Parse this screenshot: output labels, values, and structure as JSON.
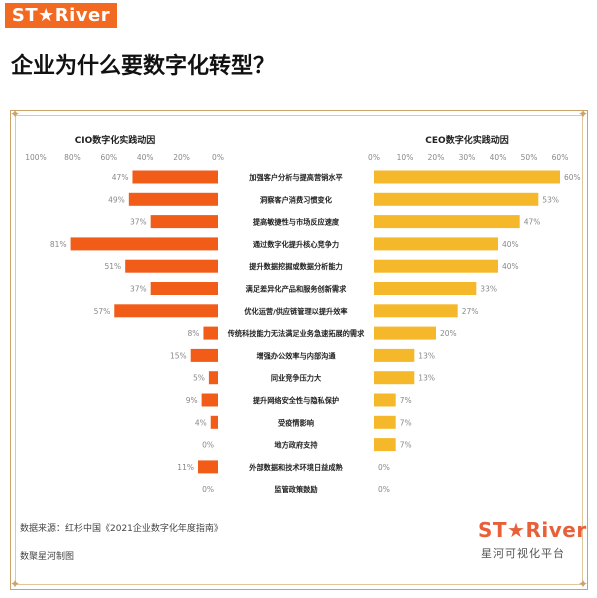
{
  "header": {
    "logo_text": "ST★River",
    "title": "企业为什么要数字化转型？"
  },
  "colors": {
    "cio": "#f25c19",
    "ceo": "#f5b82a",
    "frame": "#c9a36a",
    "logo_bg": "#f26a21"
  },
  "chart_data": {
    "type": "bar",
    "orientation": "horizontal-butterfly",
    "categories": [
      "加强客户分析与提高营销水平",
      "洞察客户消费习惯变化",
      "提高敏捷性与市场反应速度",
      "通过数字化提升核心竞争力",
      "提升数据挖掘或数据分析能力",
      "满足差异化产品和服务创新需求",
      "优化运营/供应链管理以提升效率",
      "传统科技能力无法满足业务急速拓展的需求",
      "增强办公效率与内部沟通",
      "同业竞争压力大",
      "提升网络安全性与隐私保护",
      "受疫情影响",
      "地方政府支持",
      "外部数据和技术环境日益成熟",
      "监管政策鼓励"
    ],
    "series": [
      {
        "name": "CIO数字化实践动因",
        "values": [
          47,
          49,
          37,
          81,
          51,
          37,
          57,
          8,
          15,
          5,
          9,
          4,
          0,
          11,
          0
        ]
      },
      {
        "name": "CEO数字化实践动因",
        "values": [
          60,
          53,
          47,
          40,
          40,
          33,
          27,
          20,
          13,
          13,
          7,
          7,
          7,
          0,
          0
        ]
      }
    ],
    "left_ticks": [
      "100%",
      "80%",
      "60%",
      "40%",
      "20%",
      "0%"
    ],
    "right_ticks": [
      "0%",
      "10%",
      "20%",
      "30%",
      "40%",
      "50%",
      "60%"
    ],
    "left_range": [
      0,
      100
    ],
    "right_range": [
      0,
      60
    ],
    "value_suffix": "%"
  },
  "footer": {
    "source": "数据来源：红杉中国《2021企业数字化年度指南》",
    "maker": "数聚星河制图",
    "brand": "ST★River",
    "brand_sub": "星河可视化平台"
  }
}
